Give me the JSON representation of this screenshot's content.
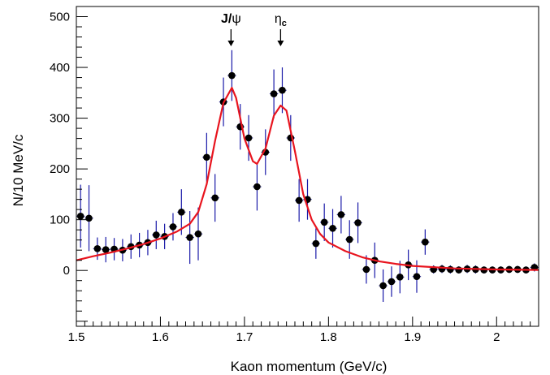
{
  "chart_data": {
    "type": "scatter",
    "title": "",
    "xlabel": "Kaon momentum (GeV/c)",
    "ylabel": "N/10 MeV/c",
    "xlim": [
      1.5,
      2.05
    ],
    "ylim": [
      -110,
      520
    ],
    "grid": false,
    "x_ticks": [
      {
        "value": 1.5,
        "label": "1.5"
      },
      {
        "value": 1.6,
        "label": "1.6"
      },
      {
        "value": 1.7,
        "label": "1.7"
      },
      {
        "value": 1.8,
        "label": "1.8"
      },
      {
        "value": 1.9,
        "label": "1.9"
      },
      {
        "value": 2.0,
        "label": "2"
      }
    ],
    "y_ticks": [
      {
        "value": 0,
        "label": "0"
      },
      {
        "value": 100,
        "label": "100"
      },
      {
        "value": 200,
        "label": "200"
      },
      {
        "value": 300,
        "label": "300"
      },
      {
        "value": 400,
        "label": "400"
      },
      {
        "value": 500,
        "label": "500"
      }
    ],
    "data_color": "#000000",
    "error_bar_color": "#1a1aa8",
    "fit_color": "#e8141e",
    "series": [
      {
        "kind": "points_with_errors",
        "points": [
          {
            "x": 1.505,
            "y": 107,
            "err": 62
          },
          {
            "x": 1.515,
            "y": 103,
            "err": 65
          },
          {
            "x": 1.525,
            "y": 43,
            "err": 22
          },
          {
            "x": 1.535,
            "y": 41,
            "err": 25
          },
          {
            "x": 1.545,
            "y": 42,
            "err": 22
          },
          {
            "x": 1.555,
            "y": 40,
            "err": 22
          },
          {
            "x": 1.565,
            "y": 47,
            "err": 24
          },
          {
            "x": 1.575,
            "y": 50,
            "err": 24
          },
          {
            "x": 1.585,
            "y": 55,
            "err": 25
          },
          {
            "x": 1.595,
            "y": 70,
            "err": 28
          },
          {
            "x": 1.605,
            "y": 67,
            "err": 25
          },
          {
            "x": 1.615,
            "y": 86,
            "err": 27
          },
          {
            "x": 1.625,
            "y": 115,
            "err": 45
          },
          {
            "x": 1.635,
            "y": 65,
            "err": 52
          },
          {
            "x": 1.645,
            "y": 72,
            "err": 52
          },
          {
            "x": 1.655,
            "y": 223,
            "err": 48
          },
          {
            "x": 1.665,
            "y": 143,
            "err": 47
          },
          {
            "x": 1.675,
            "y": 332,
            "err": 48
          },
          {
            "x": 1.685,
            "y": 384,
            "err": 50
          },
          {
            "x": 1.695,
            "y": 283,
            "err": 45
          },
          {
            "x": 1.705,
            "y": 261,
            "err": 45
          },
          {
            "x": 1.715,
            "y": 165,
            "err": 47
          },
          {
            "x": 1.725,
            "y": 233,
            "err": 45
          },
          {
            "x": 1.735,
            "y": 348,
            "err": 48
          },
          {
            "x": 1.745,
            "y": 355,
            "err": 45
          },
          {
            "x": 1.755,
            "y": 261,
            "err": 45
          },
          {
            "x": 1.765,
            "y": 138,
            "err": 42
          },
          {
            "x": 1.775,
            "y": 140,
            "err": 40
          },
          {
            "x": 1.785,
            "y": 53,
            "err": 30
          },
          {
            "x": 1.795,
            "y": 95,
            "err": 37
          },
          {
            "x": 1.805,
            "y": 83,
            "err": 38
          },
          {
            "x": 1.815,
            "y": 110,
            "err": 37
          },
          {
            "x": 1.825,
            "y": 61,
            "err": 38
          },
          {
            "x": 1.835,
            "y": 94,
            "err": 40
          },
          {
            "x": 1.845,
            "y": 2,
            "err": 28
          },
          {
            "x": 1.855,
            "y": 20,
            "err": 35
          },
          {
            "x": 1.865,
            "y": -30,
            "err": 32
          },
          {
            "x": 1.875,
            "y": -22,
            "err": 30
          },
          {
            "x": 1.885,
            "y": -13,
            "err": 32
          },
          {
            "x": 1.895,
            "y": 11,
            "err": 30
          },
          {
            "x": 1.905,
            "y": -12,
            "err": 32
          },
          {
            "x": 1.915,
            "y": 56,
            "err": 25
          },
          {
            "x": 1.925,
            "y": 2,
            "err": 8
          },
          {
            "x": 1.935,
            "y": 3,
            "err": 8
          },
          {
            "x": 1.945,
            "y": 2,
            "err": 8
          },
          {
            "x": 1.955,
            "y": 1,
            "err": 7
          },
          {
            "x": 1.965,
            "y": 3,
            "err": 8
          },
          {
            "x": 1.975,
            "y": 2,
            "err": 8
          },
          {
            "x": 1.985,
            "y": 1,
            "err": 7
          },
          {
            "x": 1.995,
            "y": 1,
            "err": 7
          },
          {
            "x": 2.005,
            "y": 1,
            "err": 7
          },
          {
            "x": 2.015,
            "y": 2,
            "err": 7
          },
          {
            "x": 2.025,
            "y": 2,
            "err": 7
          },
          {
            "x": 2.035,
            "y": 1,
            "err": 7
          },
          {
            "x": 2.045,
            "y": 6,
            "err": 8
          }
        ]
      },
      {
        "kind": "fit_curve",
        "points": [
          {
            "x": 1.5,
            "y": 20
          },
          {
            "x": 1.52,
            "y": 28
          },
          {
            "x": 1.54,
            "y": 35
          },
          {
            "x": 1.56,
            "y": 43
          },
          {
            "x": 1.58,
            "y": 52
          },
          {
            "x": 1.6,
            "y": 63
          },
          {
            "x": 1.62,
            "y": 77
          },
          {
            "x": 1.635,
            "y": 92
          },
          {
            "x": 1.645,
            "y": 115
          },
          {
            "x": 1.655,
            "y": 170
          },
          {
            "x": 1.665,
            "y": 255
          },
          {
            "x": 1.675,
            "y": 330
          },
          {
            "x": 1.685,
            "y": 360
          },
          {
            "x": 1.69,
            "y": 340
          },
          {
            "x": 1.7,
            "y": 260
          },
          {
            "x": 1.71,
            "y": 215
          },
          {
            "x": 1.715,
            "y": 210
          },
          {
            "x": 1.725,
            "y": 240
          },
          {
            "x": 1.735,
            "y": 305
          },
          {
            "x": 1.743,
            "y": 325
          },
          {
            "x": 1.75,
            "y": 315
          },
          {
            "x": 1.76,
            "y": 235
          },
          {
            "x": 1.77,
            "y": 150
          },
          {
            "x": 1.78,
            "y": 100
          },
          {
            "x": 1.79,
            "y": 72
          },
          {
            "x": 1.8,
            "y": 55
          },
          {
            "x": 1.82,
            "y": 38
          },
          {
            "x": 1.84,
            "y": 26
          },
          {
            "x": 1.86,
            "y": 18
          },
          {
            "x": 1.88,
            "y": 13
          },
          {
            "x": 1.9,
            "y": 9
          },
          {
            "x": 1.95,
            "y": 4
          },
          {
            "x": 2.0,
            "y": 2
          },
          {
            "x": 2.05,
            "y": 1
          }
        ]
      }
    ],
    "annotations": [
      {
        "label_main": "J/",
        "label_greek": "ψ",
        "label_sub": "",
        "arrow_x": 1.684
      },
      {
        "label_main": "",
        "label_greek": "η",
        "label_sub": "c",
        "arrow_x": 1.743
      }
    ]
  }
}
